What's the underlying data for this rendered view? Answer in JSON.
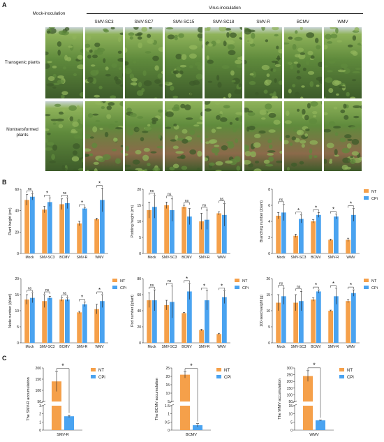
{
  "panels": {
    "a": "A",
    "b": "B",
    "c": "C"
  },
  "panel_a": {
    "mock_label": "Mock-inoculation",
    "virus_label": "Virus-inoculation",
    "columns": [
      "SMV-SC3",
      "SMV-SC7",
      "SMV-SC15",
      "SMV-SC18",
      "SMV-R",
      "BCMV",
      "WMV"
    ],
    "row_labels": [
      "Transgenic plants",
      "Nontransformed plants"
    ],
    "colors": {
      "foliage_dark": "#3d5b2a",
      "foliage_mid": "#5f8a3c",
      "foliage_light": "#8fb35a",
      "soil": "#8b6a4a",
      "sky": "#c9d3d6"
    }
  },
  "legend": {
    "nt": "NT",
    "cpi": "CPi",
    "nt_color": "#f5a04a",
    "cpi_color": "#4aa3f0"
  },
  "chart_data": [
    {
      "type": "bar",
      "panel": "B",
      "ylabel": "Plant height (cm)",
      "ylim": [
        0,
        60
      ],
      "yticks": [
        0,
        20,
        40,
        60
      ],
      "categories": [
        "Mock",
        "SMV-SC3",
        "BCMV",
        "SMV-R",
        "WMV"
      ],
      "series": [
        {
          "name": "NT",
          "values": [
            50,
            41,
            46,
            28,
            32
          ],
          "errors": [
            5,
            3,
            5,
            2,
            1
          ]
        },
        {
          "name": "CPi",
          "values": [
            53,
            48,
            47,
            42,
            50
          ],
          "errors": [
            3,
            4,
            5,
            1,
            11
          ]
        }
      ],
      "significance": [
        "ns",
        "*",
        "ns",
        "*",
        "*"
      ]
    },
    {
      "type": "bar",
      "panel": "B",
      "ylabel": "Podding height (cm)",
      "ylim": [
        0,
        20
      ],
      "yticks": [
        0,
        5,
        10,
        15,
        20
      ],
      "categories": [
        "Mock",
        "SMV-SC3",
        "BCMV",
        "SMV-R",
        "WMV"
      ],
      "series": [
        {
          "name": "NT",
          "values": [
            13.5,
            15,
            14.5,
            10,
            12.5
          ],
          "errors": [
            2.5,
            1,
            0.5,
            2.5,
            0.5
          ]
        },
        {
          "name": "CPi",
          "values": [
            14.5,
            13.5,
            11.5,
            10.5,
            12
          ],
          "errors": [
            3.5,
            3.5,
            2.5,
            3,
            3.5
          ]
        }
      ],
      "significance": [
        "ns",
        "ns",
        "ns",
        "ns",
        "ns"
      ]
    },
    {
      "type": "bar",
      "panel": "B",
      "ylabel": "Branching number (/plant)",
      "ylim": [
        0,
        8
      ],
      "yticks": [
        0,
        2,
        4,
        6,
        8
      ],
      "categories": [
        "Mock",
        "SMV-SC3",
        "BCMV",
        "SMV-R",
        "WMV"
      ],
      "series": [
        {
          "name": "NT",
          "values": [
            4.7,
            2.2,
            4.0,
            1.7,
            1.7
          ],
          "errors": [
            0.4,
            0.2,
            0.2,
            0.1,
            0.2
          ]
        },
        {
          "name": "CPi",
          "values": [
            5.1,
            4.3,
            4.8,
            4.6,
            4.8
          ],
          "errors": [
            1.0,
            0.5,
            0.3,
            0.3,
            0.8
          ]
        }
      ],
      "significance": [
        "ns",
        "*",
        "*",
        "*",
        "*"
      ],
      "legend_position": "top-right"
    },
    {
      "type": "bar",
      "panel": "B",
      "ylabel": "Node number (/plant)",
      "ylim": [
        0,
        20
      ],
      "yticks": [
        0,
        5,
        10,
        15,
        20
      ],
      "categories": [
        "Mock",
        "SMV-SC3",
        "BCMV",
        "SMV-R",
        "WMV"
      ],
      "series": [
        {
          "name": "NT",
          "values": [
            13.5,
            13,
            13.5,
            9.5,
            10.5
          ],
          "errors": [
            1.5,
            2,
            0.5,
            0.3,
            1.5
          ]
        },
        {
          "name": "CPi",
          "values": [
            14,
            14,
            13.5,
            12,
            13
          ],
          "errors": [
            1.5,
            0.5,
            0.5,
            0.7,
            2
          ]
        }
      ],
      "significance": [
        "ns",
        "ns",
        "ns",
        "*",
        "*"
      ],
      "legend_position": "top-right"
    },
    {
      "type": "bar",
      "panel": "B",
      "ylabel": "Pod number (/plant)",
      "ylim": [
        0,
        80
      ],
      "yticks": [
        0,
        20,
        40,
        60,
        80
      ],
      "categories": [
        "Mock",
        "SMV-SC3",
        "BCMV",
        "SMV-R",
        "WMV"
      ],
      "series": [
        {
          "name": "NT",
          "values": [
            53,
            47,
            37,
            16,
            11
          ],
          "errors": [
            9,
            6,
            1,
            1,
            1
          ]
        },
        {
          "name": "CPi",
          "values": [
            53,
            51,
            64,
            53,
            57
          ],
          "errors": [
            13,
            20,
            10,
            12,
            8
          ]
        }
      ],
      "significance": [
        "ns",
        "ns",
        "*",
        "*",
        "*"
      ],
      "legend_position": "top-right"
    },
    {
      "type": "bar",
      "panel": "B",
      "ylabel": "100-seed weight (g)",
      "ylim": [
        0,
        20
      ],
      "yticks": [
        0,
        5,
        10,
        15,
        20
      ],
      "categories": [
        "Mock",
        "SMV-SC3",
        "BCMV",
        "SMV-R",
        "WMV"
      ],
      "series": [
        {
          "name": "NT",
          "values": [
            12.5,
            12.5,
            13.5,
            10,
            13
          ],
          "errors": [
            2.5,
            2.5,
            0.5,
            0.2,
            0.5
          ]
        },
        {
          "name": "CPi",
          "values": [
            14.5,
            13,
            16,
            14.5,
            15.5
          ],
          "errors": [
            2.5,
            3,
            0.5,
            2.5,
            1
          ]
        }
      ],
      "significance": [
        "ns",
        "ns",
        "*",
        "*",
        "*"
      ],
      "legend_position": "top-right"
    },
    {
      "type": "bar",
      "panel": "C",
      "ylabel": "The SMV-R accumulation",
      "categories": [
        "SMV-R"
      ],
      "yticks_lower": [
        0,
        1,
        2,
        3
      ],
      "ylim_lower": [
        0,
        3
      ],
      "yticks_upper": [
        50,
        100,
        150,
        200
      ],
      "ylim_upper": [
        50,
        200
      ],
      "series": [
        {
          "name": "NT",
          "values": [
            140
          ],
          "errors": [
            45
          ]
        },
        {
          "name": "CPi",
          "values": [
            1.7
          ],
          "errors": [
            0.15
          ]
        }
      ],
      "significance": [
        "*"
      ],
      "legend_position": "top-right"
    },
    {
      "type": "bar",
      "panel": "C",
      "ylabel": "The BCMV accumulation",
      "categories": [
        "BCMV"
      ],
      "yticks_lower": [
        0,
        0.5,
        1.0,
        1.5
      ],
      "ylim_lower": [
        0,
        1.5
      ],
      "yticks_upper": [
        5,
        10,
        15,
        20,
        25
      ],
      "ylim_upper": [
        5,
        25
      ],
      "series": [
        {
          "name": "NT",
          "values": [
            21
          ],
          "errors": [
            2
          ]
        },
        {
          "name": "CPi",
          "values": [
            0.3
          ],
          "errors": [
            0.1
          ]
        }
      ],
      "significance": [
        "*"
      ],
      "legend_position": "top-right"
    },
    {
      "type": "bar",
      "panel": "C",
      "ylabel": "The WMV accumulation",
      "categories": [
        "WMV"
      ],
      "yticks_lower": [
        0,
        5,
        10,
        15
      ],
      "ylim_lower": [
        0,
        15
      ],
      "yticks_upper": [
        50,
        100,
        150,
        200,
        250,
        300
      ],
      "ylim_upper": [
        50,
        300
      ],
      "series": [
        {
          "name": "NT",
          "values": [
            240
          ],
          "errors": [
            40
          ]
        },
        {
          "name": "CPi",
          "values": [
            6
          ],
          "errors": [
            0.3
          ]
        }
      ],
      "significance": [
        "*"
      ],
      "legend_position": "top-right"
    }
  ]
}
